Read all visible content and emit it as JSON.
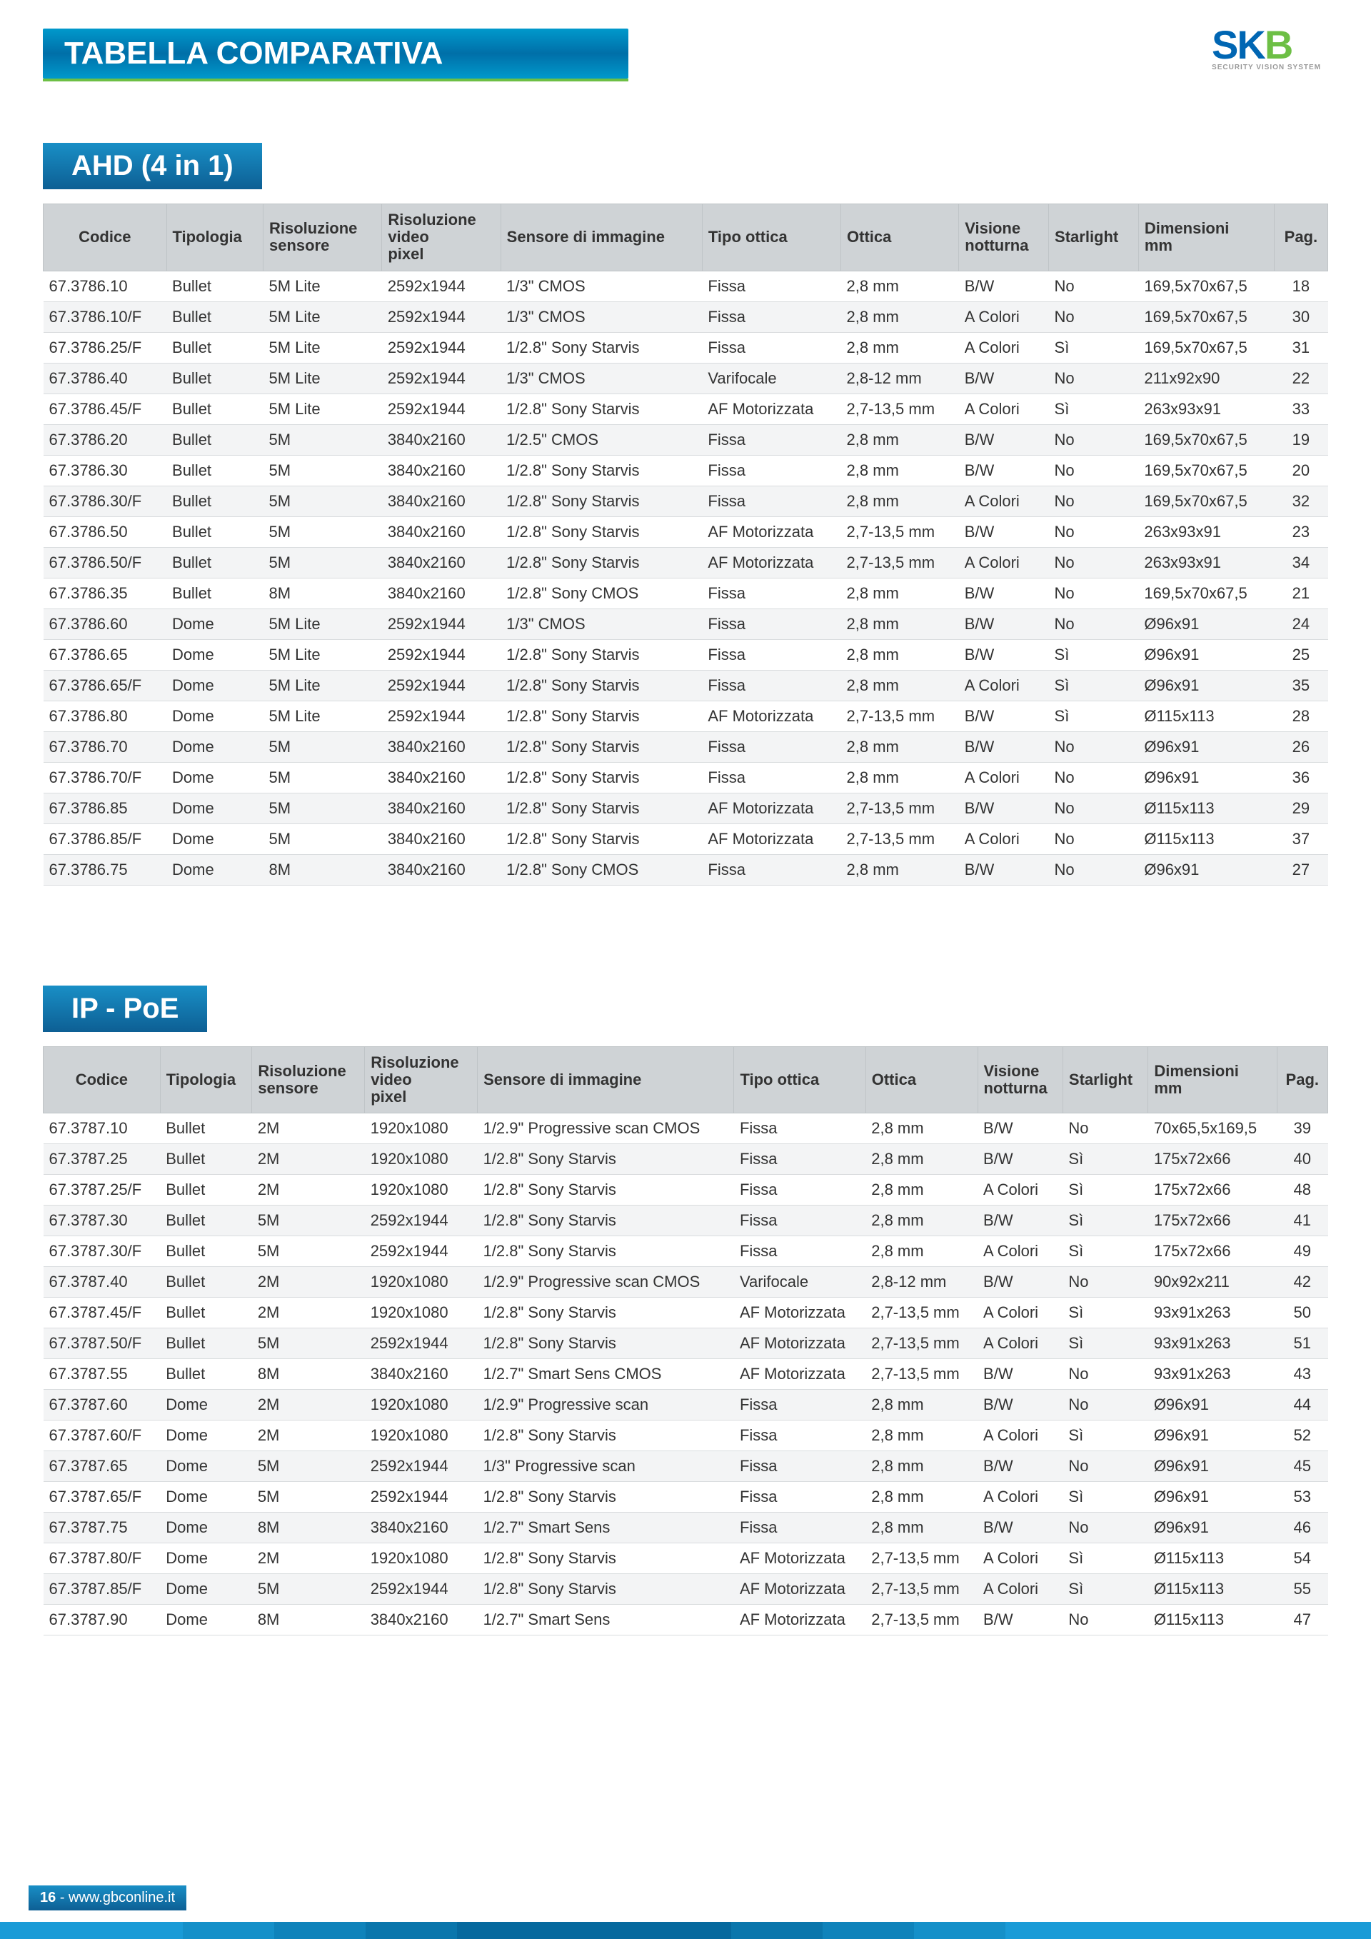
{
  "logo": {
    "text1": "SK",
    "text2": "B",
    "sub": "SECURITY VISION SYSTEM"
  },
  "page_title": "TABELLA COMPARATIVA",
  "section1_title": "AHD (4 in 1)",
  "section2_title": "IP - PoE",
  "footer": {
    "page_num": "16",
    "site": "www.gbconline.it"
  },
  "columns": [
    "Codice",
    "Tipologia",
    "Risoluzione sensore",
    "Risoluzione video pixel",
    "Sensore di immagine",
    "Tipo ottica",
    "Ottica",
    "Visione notturna",
    "Starlight",
    "Dimensioni mm",
    "Pag."
  ],
  "colors": {
    "header_bg": "#cfd3d6",
    "row_alt": "#f3f4f5",
    "brand_blue": "#0d5f94",
    "brand_green": "#6dbf45",
    "stripes": [
      "#1a9bd7",
      "#1a9bd7",
      "#1590c9",
      "#0f83bb",
      "#0a76ac",
      "#06699e",
      "#06699e",
      "#06699e",
      "#0a76ac",
      "#0f83bb",
      "#1590c9",
      "#1a9bd7",
      "#1a9bd7",
      "#1a9bd7",
      "#1a9bd7"
    ]
  },
  "table1": [
    [
      "67.3786.10",
      "Bullet",
      "5M Lite",
      "2592x1944",
      "1/3\" CMOS",
      "Fissa",
      "2,8 mm",
      "B/W",
      "No",
      "169,5x70x67,5",
      "18"
    ],
    [
      "67.3786.10/F",
      "Bullet",
      "5M Lite",
      "2592x1944",
      "1/3\" CMOS",
      "Fissa",
      "2,8 mm",
      "A Colori",
      "No",
      "169,5x70x67,5",
      "30"
    ],
    [
      "67.3786.25/F",
      "Bullet",
      "5M Lite",
      "2592x1944",
      "1/2.8\" Sony Starvis",
      "Fissa",
      "2,8 mm",
      "A Colori",
      "Sì",
      "169,5x70x67,5",
      "31"
    ],
    [
      "67.3786.40",
      "Bullet",
      "5M Lite",
      "2592x1944",
      "1/3\" CMOS",
      "Varifocale",
      "2,8-12 mm",
      "B/W",
      "No",
      "211x92x90",
      "22"
    ],
    [
      "67.3786.45/F",
      "Bullet",
      "5M Lite",
      "2592x1944",
      "1/2.8\" Sony Starvis",
      "AF Motorizzata",
      "2,7-13,5 mm",
      "A Colori",
      "Sì",
      "263x93x91",
      "33"
    ],
    [
      "67.3786.20",
      "Bullet",
      "5M",
      "3840x2160",
      "1/2.5\" CMOS",
      "Fissa",
      "2,8 mm",
      "B/W",
      "No",
      "169,5x70x67,5",
      "19"
    ],
    [
      "67.3786.30",
      "Bullet",
      "5M",
      "3840x2160",
      "1/2.8\" Sony Starvis",
      "Fissa",
      "2,8 mm",
      "B/W",
      "No",
      "169,5x70x67,5",
      "20"
    ],
    [
      "67.3786.30/F",
      "Bullet",
      "5M",
      "3840x2160",
      "1/2.8\" Sony Starvis",
      "Fissa",
      "2,8 mm",
      "A Colori",
      "No",
      "169,5x70x67,5",
      "32"
    ],
    [
      "67.3786.50",
      "Bullet",
      "5M",
      "3840x2160",
      "1/2.8\" Sony Starvis",
      "AF Motorizzata",
      "2,7-13,5 mm",
      "B/W",
      "No",
      "263x93x91",
      "23"
    ],
    [
      "67.3786.50/F",
      "Bullet",
      "5M",
      "3840x2160",
      "1/2.8\" Sony Starvis",
      "AF Motorizzata",
      "2,7-13,5 mm",
      "A Colori",
      "No",
      "263x93x91",
      "34"
    ],
    [
      "67.3786.35",
      "Bullet",
      "8M",
      "3840x2160",
      "1/2.8\" Sony CMOS",
      "Fissa",
      "2,8 mm",
      "B/W",
      "No",
      "169,5x70x67,5",
      "21"
    ],
    [
      "67.3786.60",
      "Dome",
      "5M Lite",
      "2592x1944",
      "1/3\" CMOS",
      "Fissa",
      "2,8 mm",
      "B/W",
      "No",
      "Ø96x91",
      "24"
    ],
    [
      "67.3786.65",
      "Dome",
      "5M Lite",
      "2592x1944",
      "1/2.8\" Sony Starvis",
      "Fissa",
      "2,8 mm",
      "B/W",
      "Sì",
      "Ø96x91",
      "25"
    ],
    [
      "67.3786.65/F",
      "Dome",
      "5M Lite",
      "2592x1944",
      "1/2.8\" Sony Starvis",
      "Fissa",
      "2,8 mm",
      "A Colori",
      "Sì",
      "Ø96x91",
      "35"
    ],
    [
      "67.3786.80",
      "Dome",
      "5M Lite",
      "2592x1944",
      "1/2.8\" Sony Starvis",
      "AF Motorizzata",
      "2,7-13,5 mm",
      "B/W",
      "Sì",
      "Ø115x113",
      "28"
    ],
    [
      "67.3786.70",
      "Dome",
      "5M",
      "3840x2160",
      "1/2.8\" Sony Starvis",
      "Fissa",
      "2,8 mm",
      "B/W",
      "No",
      "Ø96x91",
      "26"
    ],
    [
      "67.3786.70/F",
      "Dome",
      "5M",
      "3840x2160",
      "1/2.8\" Sony Starvis",
      "Fissa",
      "2,8 mm",
      "A Colori",
      "No",
      "Ø96x91",
      "36"
    ],
    [
      "67.3786.85",
      "Dome",
      "5M",
      "3840x2160",
      "1/2.8\" Sony Starvis",
      "AF Motorizzata",
      "2,7-13,5 mm",
      "B/W",
      "No",
      "Ø115x113",
      "29"
    ],
    [
      "67.3786.85/F",
      "Dome",
      "5M",
      "3840x2160",
      "1/2.8\" Sony Starvis",
      "AF Motorizzata",
      "2,7-13,5 mm",
      "A Colori",
      "No",
      "Ø115x113",
      "37"
    ],
    [
      "67.3786.75",
      "Dome",
      "8M",
      "3840x2160",
      "1/2.8\" Sony CMOS",
      "Fissa",
      "2,8 mm",
      "B/W",
      "No",
      "Ø96x91",
      "27"
    ]
  ],
  "table2": [
    [
      "67.3787.10",
      "Bullet",
      "2M",
      "1920x1080",
      "1/2.9\" Progressive scan CMOS",
      "Fissa",
      "2,8 mm",
      "B/W",
      "No",
      "70x65,5x169,5",
      "39"
    ],
    [
      "67.3787.25",
      "Bullet",
      "2M",
      "1920x1080",
      "1/2.8\" Sony Starvis",
      "Fissa",
      "2,8 mm",
      "B/W",
      "Sì",
      "175x72x66",
      "40"
    ],
    [
      "67.3787.25/F",
      "Bullet",
      "2M",
      "1920x1080",
      "1/2.8\" Sony Starvis",
      "Fissa",
      "2,8 mm",
      "A Colori",
      "Sì",
      "175x72x66",
      "48"
    ],
    [
      "67.3787.30",
      "Bullet",
      "5M",
      "2592x1944",
      "1/2.8\" Sony Starvis",
      "Fissa",
      "2,8 mm",
      "B/W",
      "Sì",
      "175x72x66",
      "41"
    ],
    [
      "67.3787.30/F",
      "Bullet",
      "5M",
      "2592x1944",
      "1/2.8\" Sony Starvis",
      "Fissa",
      "2,8 mm",
      "A Colori",
      "Sì",
      "175x72x66",
      "49"
    ],
    [
      "67.3787.40",
      "Bullet",
      "2M",
      "1920x1080",
      "1/2.9\" Progressive scan CMOS",
      "Varifocale",
      "2,8-12 mm",
      "B/W",
      "No",
      "90x92x211",
      "42"
    ],
    [
      "67.3787.45/F",
      "Bullet",
      "2M",
      "1920x1080",
      "1/2.8\" Sony Starvis",
      "AF Motorizzata",
      "2,7-13,5 mm",
      "A Colori",
      "Sì",
      "93x91x263",
      "50"
    ],
    [
      "67.3787.50/F",
      "Bullet",
      "5M",
      "2592x1944",
      "1/2.8\" Sony Starvis",
      "AF Motorizzata",
      "2,7-13,5 mm",
      "A Colori",
      "Sì",
      "93x91x263",
      "51"
    ],
    [
      "67.3787.55",
      "Bullet",
      "8M",
      "3840x2160",
      "1/2.7\" Smart Sens CMOS",
      "AF Motorizzata",
      "2,7-13,5 mm",
      "B/W",
      "No",
      "93x91x263",
      "43"
    ],
    [
      "67.3787.60",
      "Dome",
      "2M",
      "1920x1080",
      "1/2.9\" Progressive scan",
      "Fissa",
      "2,8 mm",
      "B/W",
      "No",
      "Ø96x91",
      "44"
    ],
    [
      "67.3787.60/F",
      "Dome",
      "2M",
      "1920x1080",
      "1/2.8\" Sony Starvis",
      "Fissa",
      "2,8 mm",
      "A Colori",
      "Sì",
      "Ø96x91",
      "52"
    ],
    [
      "67.3787.65",
      "Dome",
      "5M",
      "2592x1944",
      "1/3\" Progressive scan",
      "Fissa",
      "2,8 mm",
      "B/W",
      "No",
      "Ø96x91",
      "45"
    ],
    [
      "67.3787.65/F",
      "Dome",
      "5M",
      "2592x1944",
      "1/2.8\" Sony Starvis",
      "Fissa",
      "2,8 mm",
      "A Colori",
      "Sì",
      "Ø96x91",
      "53"
    ],
    [
      "67.3787.75",
      "Dome",
      "8M",
      "3840x2160",
      "1/2.7\" Smart Sens",
      "Fissa",
      "2,8 mm",
      "B/W",
      "No",
      "Ø96x91",
      "46"
    ],
    [
      "67.3787.80/F",
      "Dome",
      "2M",
      "1920x1080",
      "1/2.8\" Sony Starvis",
      "AF Motorizzata",
      "2,7-13,5 mm",
      "A Colori",
      "Sì",
      "Ø115x113",
      "54"
    ],
    [
      "67.3787.85/F",
      "Dome",
      "5M",
      "2592x1944",
      "1/2.8\" Sony Starvis",
      "AF Motorizzata",
      "2,7-13,5 mm",
      "A Colori",
      "Sì",
      "Ø115x113",
      "55"
    ],
    [
      "67.3787.90",
      "Dome",
      "8M",
      "3840x2160",
      "1/2.7\" Smart Sens",
      "AF Motorizzata",
      "2,7-13,5 mm",
      "B/W",
      "No",
      "Ø115x113",
      "47"
    ]
  ]
}
